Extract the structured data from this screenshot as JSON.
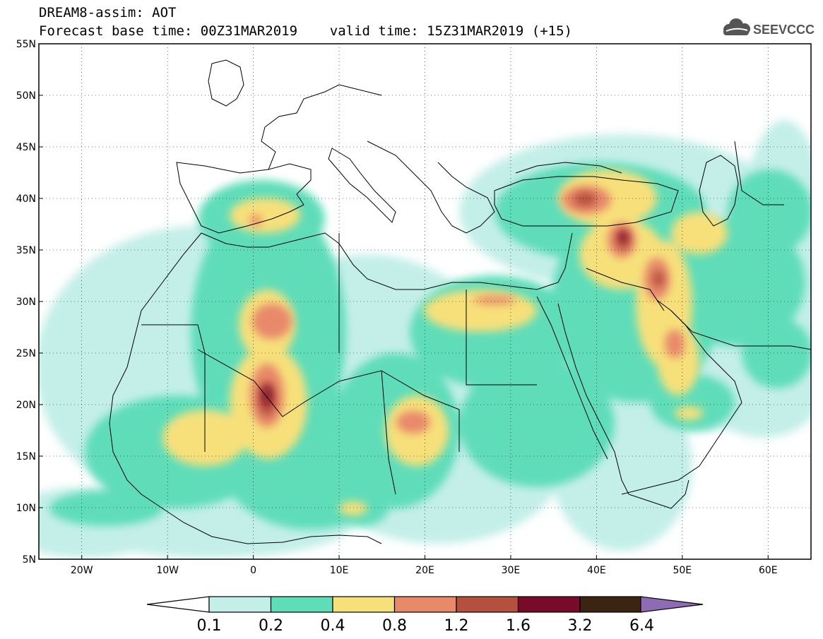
{
  "header": {
    "title": "DREAM8-assim: AOT",
    "subtitle": "Forecast base time: 00Z31MAR2019    valid time: 15Z31MAR2019 (+15)",
    "logo_text": "SEEVCCC"
  },
  "map": {
    "lat_labels": [
      "55N",
      "50N",
      "45N",
      "40N",
      "35N",
      "30N",
      "25N",
      "20N",
      "15N",
      "10N",
      "5N"
    ],
    "lon_labels": [
      "20W",
      "10W",
      "0",
      "10E",
      "20E",
      "30E",
      "40E",
      "50E",
      "60E"
    ],
    "lat_range": [
      5,
      55
    ],
    "lon_range": [
      -25,
      65
    ],
    "grid": "dotted"
  },
  "legend": {
    "thresholds": [
      "0.1",
      "0.2",
      "0.4",
      "0.8",
      "1.2",
      "1.6",
      "3.2",
      "6.4"
    ],
    "colors": [
      "#c4efe9",
      "#5fddb9",
      "#f7e07a",
      "#e8896a",
      "#b5503e",
      "#7a0a2a",
      "#3b2512",
      "#8e6cb5"
    ],
    "under_color": "#ffffff"
  },
  "colors": {
    "land_lines": "#000000",
    "background": "#ffffff"
  }
}
